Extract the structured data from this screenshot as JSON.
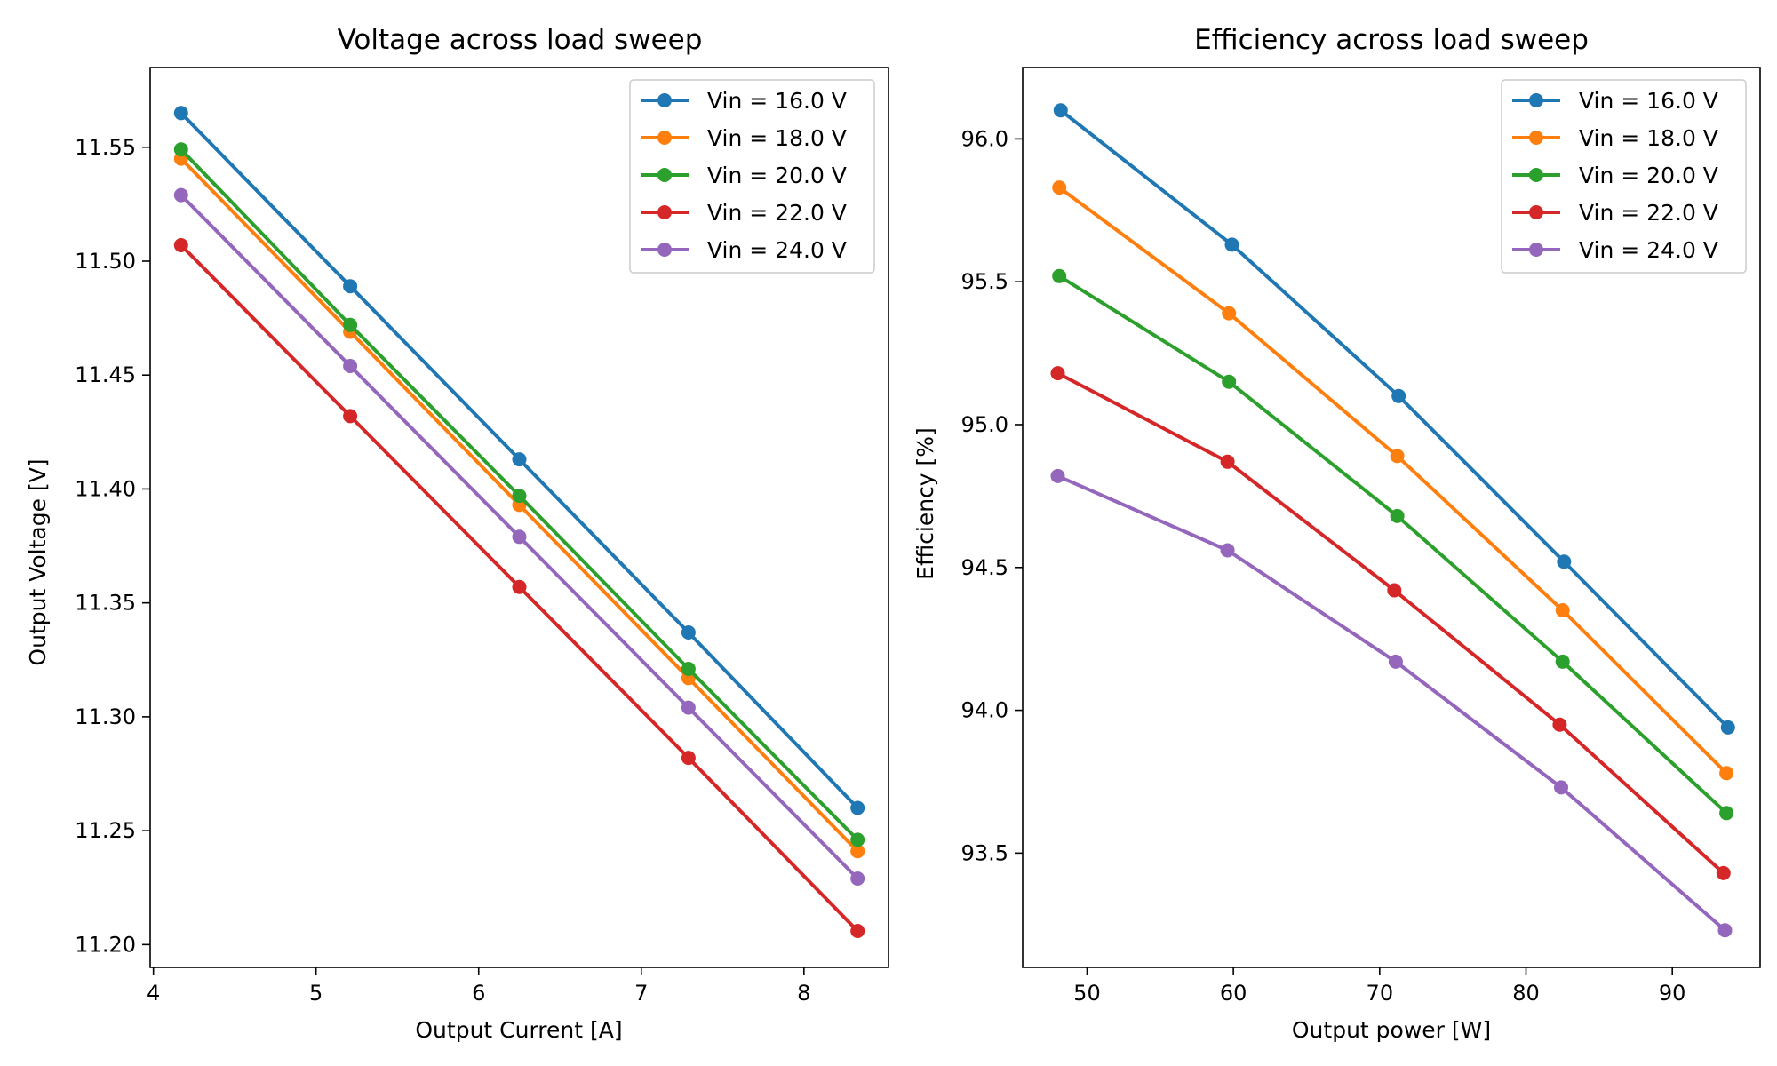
{
  "chart_data": [
    {
      "type": "line",
      "title": "Voltage across load sweep",
      "xlabel": "Output Current [A]",
      "ylabel": "Output Voltage [V]",
      "xlim": [
        3.98,
        8.52
      ],
      "ylim": [
        11.19,
        11.585
      ],
      "xticks": [
        4,
        5,
        6,
        7,
        8
      ],
      "xtick_labels": [
        "4",
        "5",
        "6",
        "7",
        "8"
      ],
      "yticks": [
        11.2,
        11.25,
        11.3,
        11.35,
        11.4,
        11.45,
        11.5,
        11.55
      ],
      "ytick_labels": [
        "11.20",
        "11.25",
        "11.30",
        "11.35",
        "11.40",
        "11.45",
        "11.50",
        "11.55"
      ],
      "grid": false,
      "legend_position": "top-right",
      "series": [
        {
          "name": "Vin = 16.0 V",
          "color": "#1f77b4",
          "x": [
            4.17,
            5.21,
            6.25,
            7.29,
            8.33
          ],
          "y": [
            11.565,
            11.489,
            11.413,
            11.337,
            11.26
          ]
        },
        {
          "name": "Vin = 18.0 V",
          "color": "#ff7f0e",
          "x": [
            4.17,
            5.21,
            6.25,
            7.29,
            8.33
          ],
          "y": [
            11.545,
            11.469,
            11.393,
            11.317,
            11.241
          ]
        },
        {
          "name": "Vin = 20.0 V",
          "color": "#2ca02c",
          "x": [
            4.17,
            5.21,
            6.25,
            7.29,
            8.33
          ],
          "y": [
            11.549,
            11.472,
            11.397,
            11.321,
            11.246
          ]
        },
        {
          "name": "Vin = 22.0 V",
          "color": "#d62728",
          "x": [
            4.17,
            5.21,
            6.25,
            7.29,
            8.33
          ],
          "y": [
            11.507,
            11.432,
            11.357,
            11.282,
            11.206
          ]
        },
        {
          "name": "Vin = 24.0 V",
          "color": "#9467bd",
          "x": [
            4.17,
            5.21,
            6.25,
            7.29,
            8.33
          ],
          "y": [
            11.529,
            11.454,
            11.379,
            11.304,
            11.229
          ]
        }
      ]
    },
    {
      "type": "line",
      "title": "Efficiency across load sweep",
      "xlabel": "Output power [W]",
      "ylabel": "Efficiency [%]",
      "xlim": [
        45.6,
        96.0
      ],
      "ylim": [
        93.1,
        96.25
      ],
      "xticks": [
        50,
        60,
        70,
        80,
        90
      ],
      "xtick_labels": [
        "50",
        "60",
        "70",
        "80",
        "90"
      ],
      "yticks": [
        93.5,
        94.0,
        94.5,
        95.0,
        95.5,
        96.0
      ],
      "ytick_labels": [
        "93.5",
        "94.0",
        "94.5",
        "95.0",
        "95.5",
        "96.0"
      ],
      "grid": false,
      "legend_position": "top-right",
      "series": [
        {
          "name": "Vin = 16.0 V",
          "color": "#1f77b4",
          "x": [
            48.2,
            59.9,
            71.3,
            82.6,
            93.8
          ],
          "y": [
            96.1,
            95.63,
            95.1,
            94.52,
            93.94
          ]
        },
        {
          "name": "Vin = 18.0 V",
          "color": "#ff7f0e",
          "x": [
            48.1,
            59.7,
            71.2,
            82.5,
            93.7
          ],
          "y": [
            95.83,
            95.39,
            94.89,
            94.35,
            93.78
          ]
        },
        {
          "name": "Vin = 20.0 V",
          "color": "#2ca02c",
          "x": [
            48.1,
            59.7,
            71.2,
            82.5,
            93.7
          ],
          "y": [
            95.52,
            95.15,
            94.68,
            94.17,
            93.64
          ]
        },
        {
          "name": "Vin = 22.0 V",
          "color": "#d62728",
          "x": [
            48.0,
            59.6,
            71.0,
            82.3,
            93.5
          ],
          "y": [
            95.18,
            94.87,
            94.42,
            93.95,
            93.43
          ]
        },
        {
          "name": "Vin = 24.0 V",
          "color": "#9467bd",
          "x": [
            48.0,
            59.6,
            71.1,
            82.4,
            93.6
          ],
          "y": [
            94.82,
            94.56,
            94.17,
            93.73,
            93.23
          ]
        }
      ]
    }
  ]
}
